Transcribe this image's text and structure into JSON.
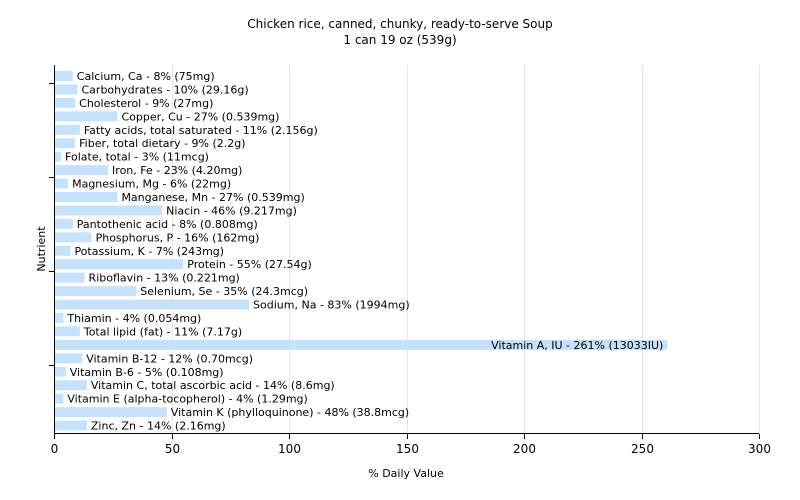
{
  "chart_data": {
    "type": "bar",
    "orientation": "horizontal",
    "title": "Chicken rice, canned, chunky, ready-to-serve Soup",
    "subtitle": "1 can 19 oz (539g)",
    "xlabel": "% Daily Value",
    "ylabel": "Nutrient",
    "xlim": [
      0,
      300
    ],
    "xticks": [
      0,
      50,
      100,
      150,
      200,
      250,
      300
    ],
    "grid": "vertical",
    "bar_color": "#c6e2fb",
    "categories": [
      "Calcium, Ca",
      "Carbohydrates",
      "Cholesterol",
      "Copper, Cu",
      "Fatty acids, total saturated",
      "Fiber, total dietary",
      "Folate, total",
      "Iron, Fe",
      "Magnesium, Mg",
      "Manganese, Mn",
      "Niacin",
      "Pantothenic acid",
      "Phosphorus, P",
      "Potassium, K",
      "Protein",
      "Riboflavin",
      "Selenium, Se",
      "Sodium, Na",
      "Thiamin",
      "Total lipid (fat)",
      "Vitamin A, IU",
      "Vitamin B-12",
      "Vitamin B-6",
      "Vitamin C, total ascorbic acid",
      "Vitamin E (alpha-tocopherol)",
      "Vitamin K (phylloquinone)",
      "Zinc, Zn"
    ],
    "values": [
      8,
      10,
      9,
      27,
      11,
      9,
      3,
      23,
      6,
      27,
      46,
      8,
      16,
      7,
      55,
      13,
      35,
      83,
      4,
      11,
      261,
      12,
      5,
      14,
      4,
      48,
      14
    ],
    "labels": [
      "Calcium, Ca - 8% (75mg)",
      "Carbohydrates - 10% (29.16g)",
      "Cholesterol - 9% (27mg)",
      "Copper, Cu - 27% (0.539mg)",
      "Fatty acids, total saturated - 11% (2.156g)",
      "Fiber, total dietary - 9% (2.2g)",
      "Folate, total - 3% (11mcg)",
      "Iron, Fe - 23% (4.20mg)",
      "Magnesium, Mg - 6% (22mg)",
      "Manganese, Mn - 27% (0.539mg)",
      "Niacin - 46% (9.217mg)",
      "Pantothenic acid - 8% (0.808mg)",
      "Phosphorus, P - 16% (162mg)",
      "Potassium, K - 7% (243mg)",
      "Protein - 55% (27.54g)",
      "Riboflavin - 13% (0.221mg)",
      "Selenium, Se - 35% (24.3mcg)",
      "Sodium, Na - 83% (1994mg)",
      "Thiamin - 4% (0.054mg)",
      "Total lipid (fat) - 11% (7.17g)",
      "Vitamin A, IU - 261% (13033IU)",
      "Vitamin B-12 - 12% (0.70mcg)",
      "Vitamin B-6 - 5% (0.108mg)",
      "Vitamin C, total ascorbic acid - 14% (8.6mg)",
      "Vitamin E (alpha-tocopherol) - 4% (1.29mg)",
      "Vitamin K (phylloquinone) - 48% (38.8mcg)",
      "Zinc, Zn - 14% (2.16mg)"
    ]
  }
}
